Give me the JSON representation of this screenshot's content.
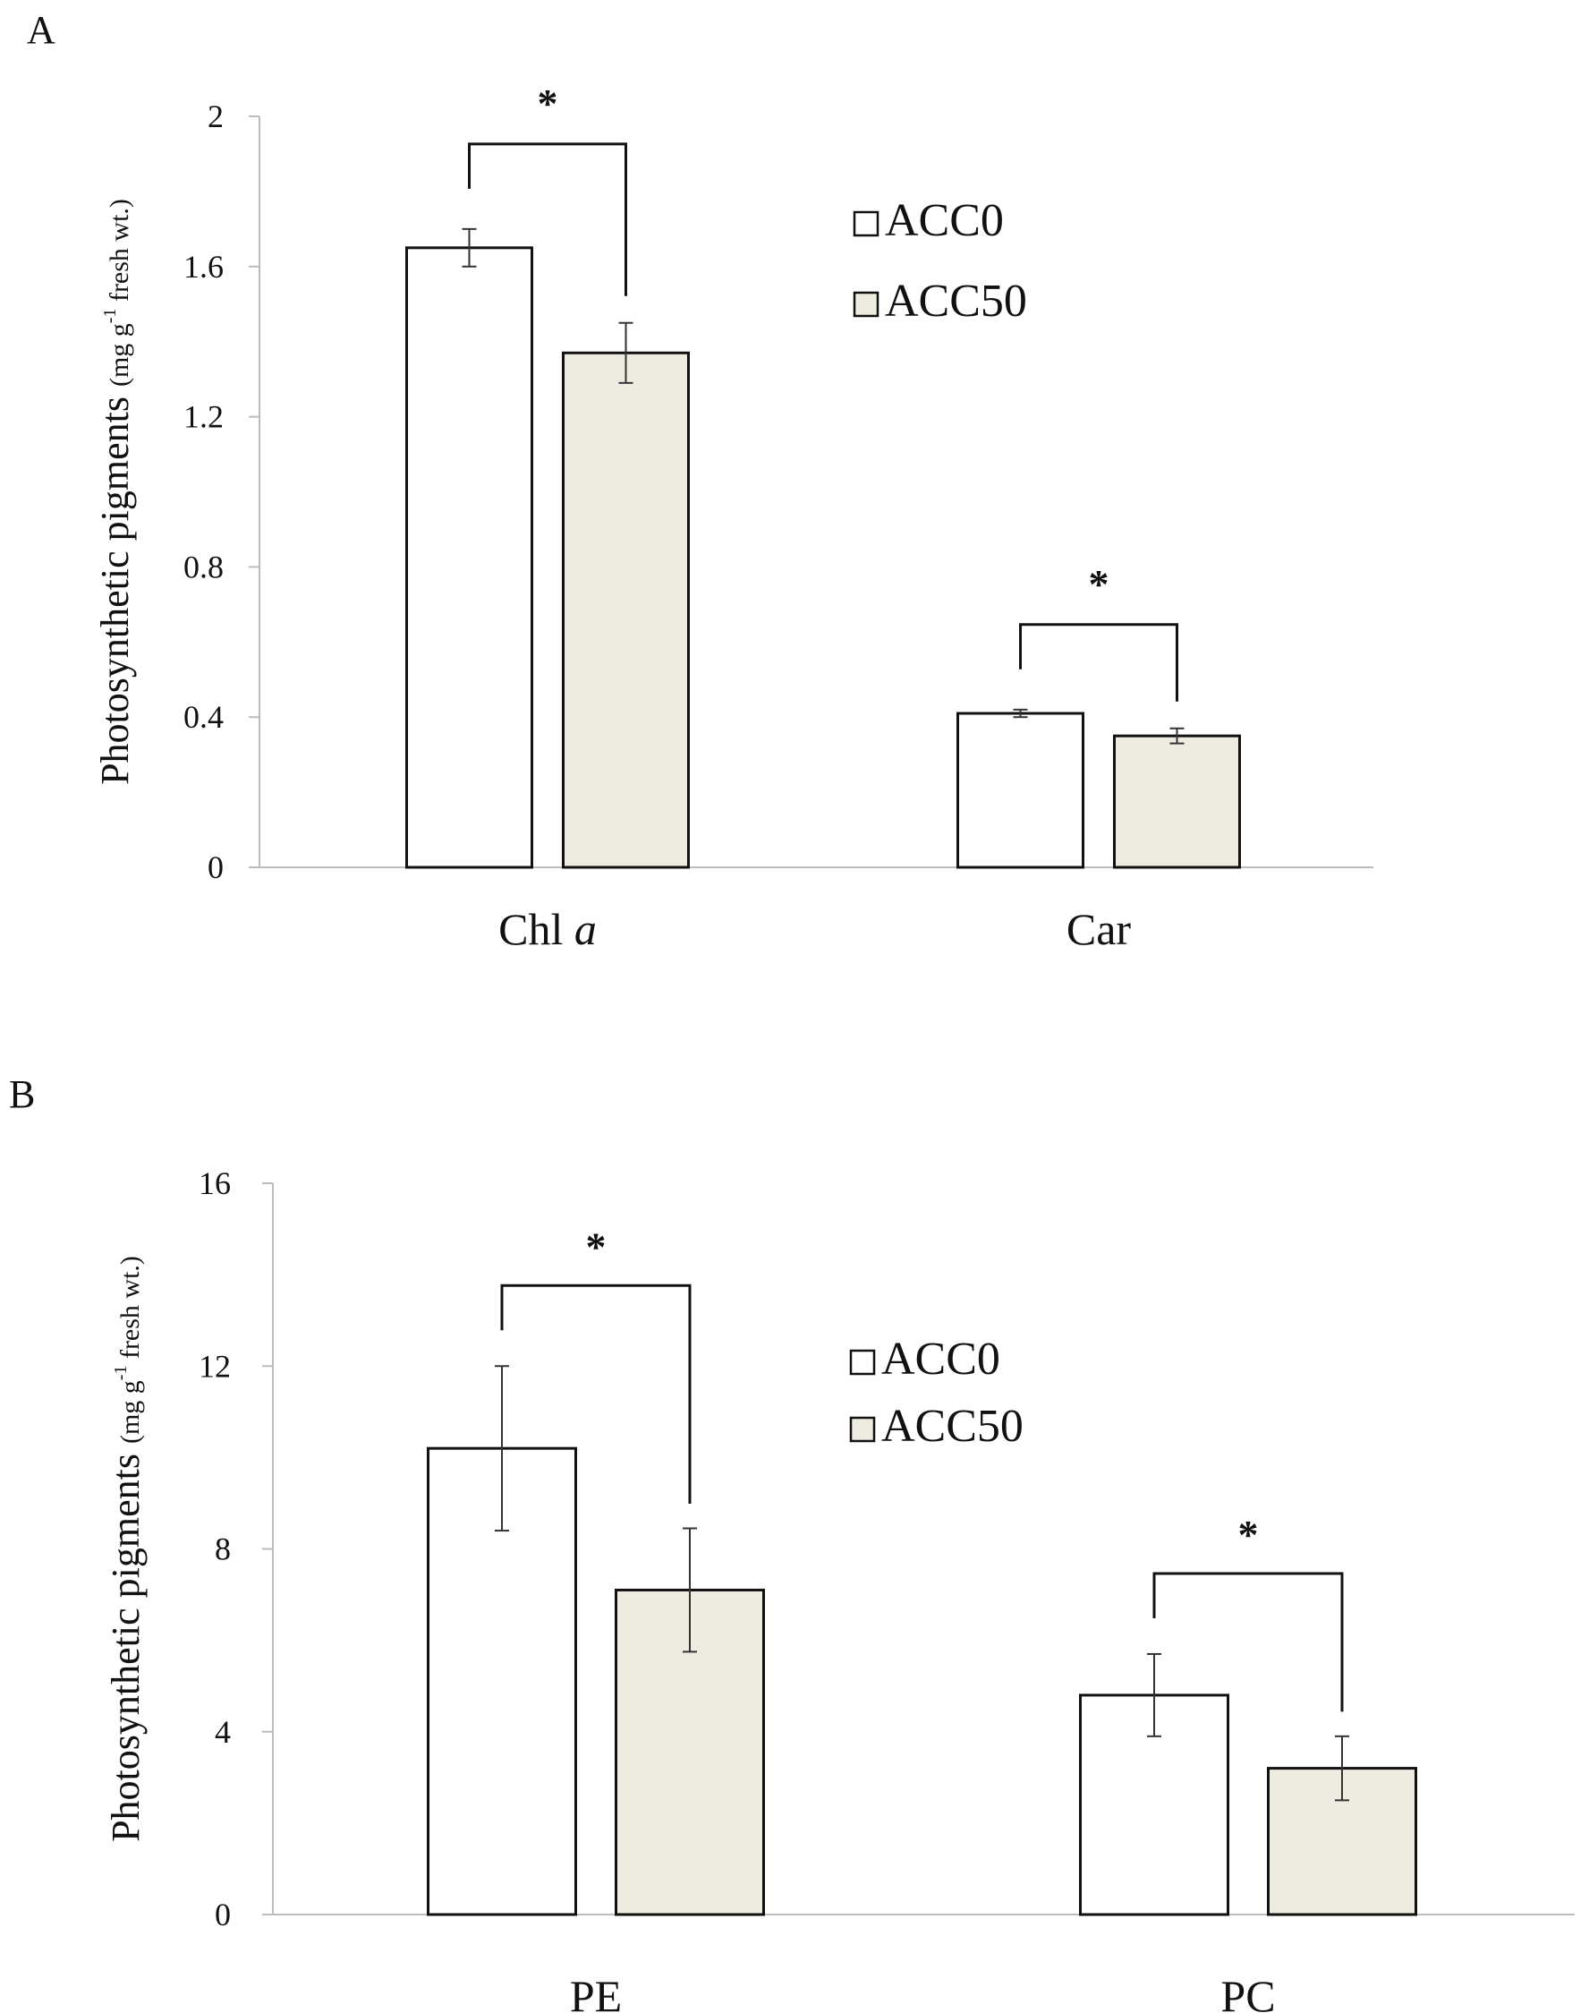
{
  "chart_data": [
    {
      "type": "bar",
      "panel_label": "A",
      "ylabel": "Photosynthetic pigments",
      "ylabel_unit": "(mg g-1 fresh wt.)",
      "ylabel_unit_parts": [
        "(mg g",
        "-1",
        " fresh wt.)"
      ],
      "ylim": [
        0,
        2
      ],
      "yticks": [
        0,
        0.4,
        0.8,
        1.2,
        1.6,
        2
      ],
      "ytick_labels": [
        "0",
        "0.4",
        "0.8",
        "1.2",
        "1.6",
        "2"
      ],
      "categories": [
        "Chl a",
        "Car"
      ],
      "category_parts": [
        [
          "Chl ",
          "a"
        ],
        [
          "Car",
          ""
        ]
      ],
      "series": [
        {
          "name": "ACC0",
          "values": [
            1.65,
            0.41
          ],
          "errors": [
            0.05,
            0.01
          ]
        },
        {
          "name": "ACC50",
          "values": [
            1.37,
            0.35
          ],
          "errors": [
            0.08,
            0.02
          ]
        }
      ],
      "significance": [
        "*",
        "*"
      ],
      "legend": [
        "ACC0",
        "ACC50"
      ]
    },
    {
      "type": "bar",
      "panel_label": "B",
      "ylabel": "Photosynthetic pigments",
      "ylabel_unit": "(mg g-1 fresh wt.)",
      "ylabel_unit_parts": [
        "(mg g",
        "-1",
        " fresh wt.)"
      ],
      "ylim": [
        0,
        16
      ],
      "yticks": [
        0,
        4,
        8,
        12,
        16
      ],
      "ytick_labels": [
        "0",
        "4",
        "8",
        "12",
        "16"
      ],
      "categories": [
        "PE",
        "PC"
      ],
      "category_parts": [
        [
          "PE",
          ""
        ],
        [
          "PC",
          ""
        ]
      ],
      "series": [
        {
          "name": "ACC0",
          "values": [
            10.2,
            4.8
          ],
          "errors": [
            1.8,
            0.9
          ]
        },
        {
          "name": "ACC50",
          "values": [
            7.1,
            3.2
          ],
          "errors": [
            1.35,
            0.7
          ]
        }
      ],
      "significance": [
        "*",
        "*"
      ],
      "legend": [
        "ACC0",
        "ACC50"
      ]
    }
  ],
  "colors": {
    "acc0_fill": "#ffffff",
    "acc50_fill": "#eeebe1",
    "stroke": "#111111",
    "axis": "#bbbbbb"
  }
}
